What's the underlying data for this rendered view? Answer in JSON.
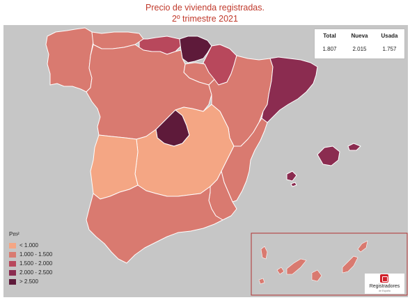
{
  "title_line1": "Precio de vivienda registradas.",
  "title_line2": "2º trimestre 2021",
  "stats": {
    "headers": [
      "Total",
      "Nueva",
      "Usada"
    ],
    "values": [
      "1.807",
      "2.015",
      "1.757"
    ]
  },
  "legend": {
    "unit": "Pm²",
    "items": [
      {
        "label": "< 1.000",
        "color": "#f4a684"
      },
      {
        "label": "1.000 - 1.500",
        "color": "#d97a70"
      },
      {
        "label": "1.500 - 2.000",
        "color": "#b8485c"
      },
      {
        "label": "2.000 - 2.500",
        "color": "#8b2c50"
      },
      {
        "label": "> 2.500",
        "color": "#5e1a3a"
      }
    ]
  },
  "logo": {
    "name": "Registradores",
    "sub": "de España"
  },
  "colors": {
    "background": "#c6c6c6",
    "border_line": "#ffffff",
    "canarias_frame": "#b03030",
    "title": "#c0392b"
  },
  "regions": [
    {
      "name": "Galicia",
      "category": 1
    },
    {
      "name": "Asturias",
      "category": 1
    },
    {
      "name": "Cantabria",
      "category": 2
    },
    {
      "name": "País Vasco",
      "category": 4
    },
    {
      "name": "Navarra",
      "category": 2
    },
    {
      "name": "La Rioja",
      "category": 1
    },
    {
      "name": "Castilla y León",
      "category": 1
    },
    {
      "name": "Aragón",
      "category": 1
    },
    {
      "name": "Cataluña",
      "category": 3
    },
    {
      "name": "Madrid",
      "category": 4
    },
    {
      "name": "Castilla-La Mancha",
      "category": 0
    },
    {
      "name": "Extremadura",
      "category": 0
    },
    {
      "name": "Comunidad Valenciana",
      "category": 1
    },
    {
      "name": "Región de Murcia",
      "category": 1
    },
    {
      "name": "Andalucía",
      "category": 1
    },
    {
      "name": "Islas Baleares",
      "category": 3
    },
    {
      "name": "Islas Canarias",
      "category": 1
    }
  ]
}
